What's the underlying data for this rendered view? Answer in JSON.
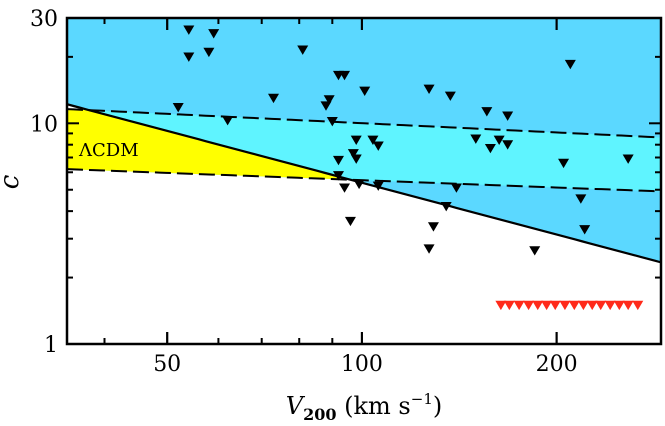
{
  "chart_data": {
    "type": "scatter",
    "xscale": "log",
    "yscale": "log",
    "xlim": [
      35,
      290
    ],
    "ylim": [
      1,
      30
    ],
    "xticks": [
      50,
      100,
      200
    ],
    "yticks": [
      1,
      10,
      30
    ],
    "xlabel": {
      "symbol": "V",
      "subscript": "200",
      "unit_prefix": "(km s",
      "unit_exp": "−1",
      "unit_suffix": ")"
    },
    "ylabel": "c",
    "annotation": "ΛCDM",
    "colors": {
      "region_blue": "#5bd8ff",
      "region_cyan": "#5ff4ff",
      "region_yellow": "#ffff00",
      "markers": "#000000",
      "limit_markers": "#ff2a1a"
    },
    "regions": [
      {
        "name": "upper-shaded-region",
        "color": "#5bd8ff",
        "boundary": "above solid line c ≈ 12.2·(V/35)^-0.78"
      },
      {
        "name": "lcdm-band-cyan",
        "color": "#5ff4ff",
        "lower": "c ≈ 6.2·(V/35)^-0.11",
        "upper": "c ≈ 11.6·(V/35)^-0.14"
      },
      {
        "name": "lcdm-band-yellow",
        "color": "#ffff00"
      }
    ],
    "lines": [
      {
        "name": "limit-line-solid",
        "style": "solid",
        "amp": 12.2,
        "slope": -0.78
      },
      {
        "name": "lcdm-upper-dashed",
        "style": "dashed",
        "amp": 11.6,
        "slope": -0.14
      },
      {
        "name": "lcdm-lower-dashed",
        "style": "dashed",
        "amp": 6.2,
        "slope": -0.11
      }
    ],
    "points": [
      {
        "x": 54,
        "y": 26.5
      },
      {
        "x": 54,
        "y": 20
      },
      {
        "x": 58,
        "y": 21
      },
      {
        "x": 59,
        "y": 25.5
      },
      {
        "x": 52,
        "y": 11.8
      },
      {
        "x": 62,
        "y": 10.3
      },
      {
        "x": 73,
        "y": 13
      },
      {
        "x": 81,
        "y": 21.5
      },
      {
        "x": 88,
        "y": 12
      },
      {
        "x": 89,
        "y": 12.8
      },
      {
        "x": 92,
        "y": 16.5
      },
      {
        "x": 94,
        "y": 16.5
      },
      {
        "x": 101,
        "y": 14
      },
      {
        "x": 90,
        "y": 10.2
      },
      {
        "x": 98,
        "y": 8.4
      },
      {
        "x": 97,
        "y": 7.3
      },
      {
        "x": 98,
        "y": 6.9
      },
      {
        "x": 104,
        "y": 8.4
      },
      {
        "x": 106,
        "y": 7.9
      },
      {
        "x": 92,
        "y": 6.8
      },
      {
        "x": 92,
        "y": 5.8
      },
      {
        "x": 94,
        "y": 5.1
      },
      {
        "x": 99,
        "y": 5.3
      },
      {
        "x": 106,
        "y": 5.2
      },
      {
        "x": 96,
        "y": 3.6
      },
      {
        "x": 127,
        "y": 14.3
      },
      {
        "x": 137,
        "y": 13.3
      },
      {
        "x": 156,
        "y": 11.3
      },
      {
        "x": 168,
        "y": 10.8
      },
      {
        "x": 150,
        "y": 8.5
      },
      {
        "x": 158,
        "y": 7.7
      },
      {
        "x": 163,
        "y": 8.4
      },
      {
        "x": 168,
        "y": 8
      },
      {
        "x": 140,
        "y": 5.1
      },
      {
        "x": 135,
        "y": 4.2
      },
      {
        "x": 129,
        "y": 3.4
      },
      {
        "x": 127,
        "y": 2.7
      },
      {
        "x": 185,
        "y": 2.65
      },
      {
        "x": 210,
        "y": 18.5
      },
      {
        "x": 205,
        "y": 6.6
      },
      {
        "x": 218,
        "y": 4.55
      },
      {
        "x": 221,
        "y": 3.3
      },
      {
        "x": 258,
        "y": 6.9
      }
    ],
    "limits": [
      {
        "x": 164,
        "y": 1.5
      },
      {
        "x": 169,
        "y": 1.5
      },
      {
        "x": 175,
        "y": 1.5
      },
      {
        "x": 181,
        "y": 1.5
      },
      {
        "x": 187,
        "y": 1.5
      },
      {
        "x": 193,
        "y": 1.5
      },
      {
        "x": 199,
        "y": 1.5
      },
      {
        "x": 206,
        "y": 1.5
      },
      {
        "x": 213,
        "y": 1.5
      },
      {
        "x": 220,
        "y": 1.5
      },
      {
        "x": 227,
        "y": 1.5
      },
      {
        "x": 234,
        "y": 1.5
      },
      {
        "x": 242,
        "y": 1.5
      },
      {
        "x": 250,
        "y": 1.5
      },
      {
        "x": 258,
        "y": 1.5
      },
      {
        "x": 267,
        "y": 1.5
      }
    ]
  }
}
